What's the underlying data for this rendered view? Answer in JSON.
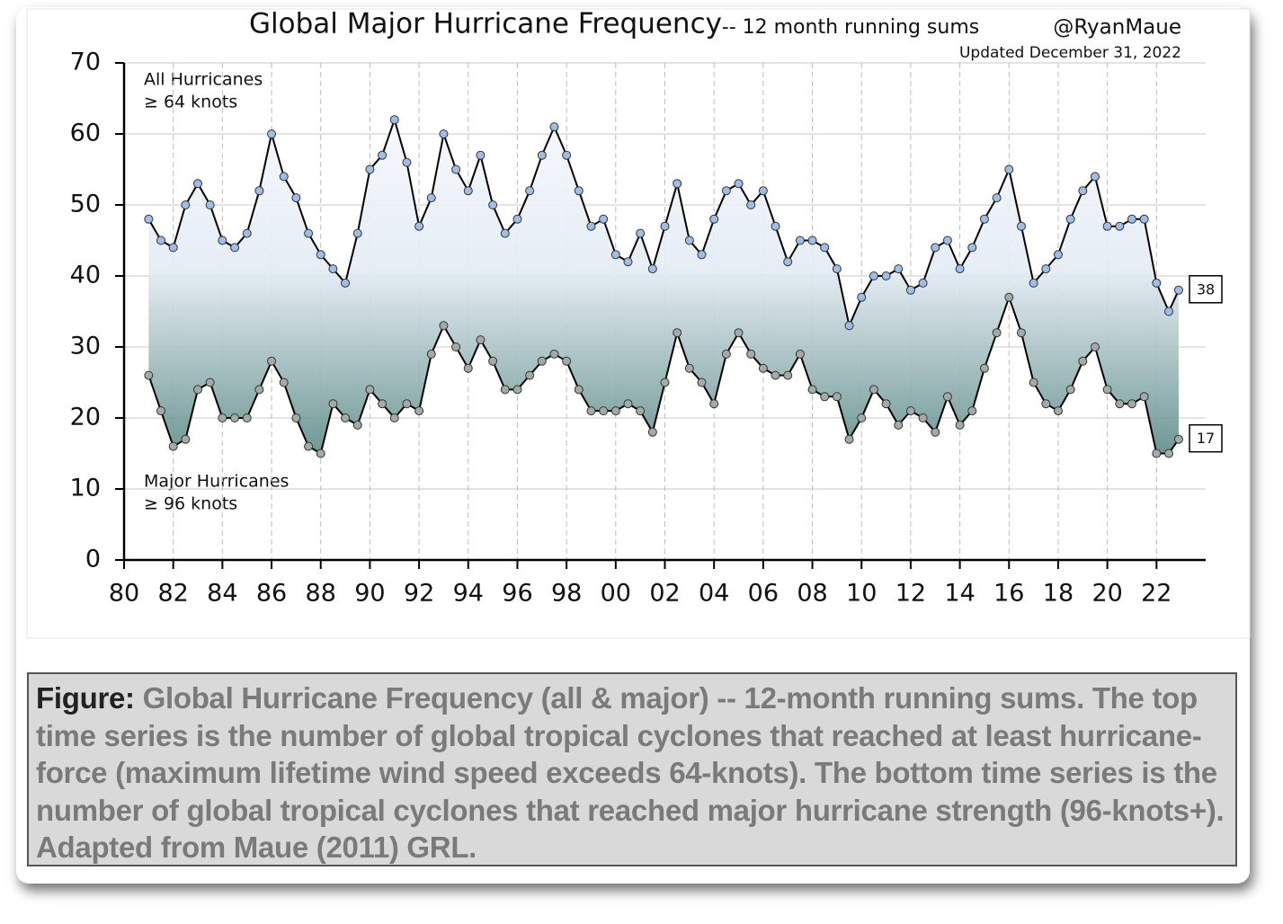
{
  "chart_data": {
    "type": "line",
    "title": "Global Major Hurricane Frequency",
    "subtitle": "-- 12 month running sums",
    "author": "@RyanMaue",
    "updated": "Updated December 31, 2022",
    "annotations": [
      {
        "lines": [
          "All Hurricanes",
          "≥ 64 knots"
        ]
      },
      {
        "lines": [
          "Major Hurricanes",
          "≥ 96 knots"
        ]
      }
    ],
    "x": [
      1981,
      1981.5,
      1982,
      1982.5,
      1983,
      1983.5,
      1984,
      1984.5,
      1985,
      1985.5,
      1986,
      1986.5,
      1987,
      1987.5,
      1988,
      1988.5,
      1989,
      1989.5,
      1990,
      1990.5,
      1991,
      1991.5,
      1992,
      1992.5,
      1993,
      1993.5,
      1994,
      1994.5,
      1995,
      1995.5,
      1996,
      1996.5,
      1997,
      1997.5,
      1998,
      1998.5,
      1999,
      1999.5,
      2000,
      2000.5,
      2001,
      2001.5,
      2002,
      2002.5,
      2003,
      2003.5,
      2004,
      2004.5,
      2005,
      2005.5,
      2006,
      2006.5,
      2007,
      2007.5,
      2008,
      2008.5,
      2009,
      2009.5,
      2010,
      2010.5,
      2011,
      2011.5,
      2012,
      2012.5,
      2013,
      2013.5,
      2014,
      2014.5,
      2015,
      2015.5,
      2016,
      2016.5,
      2017,
      2017.5,
      2018,
      2018.5,
      2019,
      2019.5,
      2020,
      2020.5,
      2021,
      2021.5,
      2022,
      2022.5,
      2022.9
    ],
    "series": [
      {
        "name": "All Hurricanes",
        "color": "#9dbdea",
        "end_label": "38",
        "values": [
          48,
          45,
          44,
          50,
          53,
          50,
          45,
          44,
          46,
          52,
          60,
          54,
          51,
          46,
          43,
          41,
          39,
          46,
          55,
          57,
          62,
          56,
          47,
          51,
          60,
          55,
          52,
          57,
          50,
          46,
          48,
          52,
          57,
          61,
          57,
          52,
          47,
          48,
          43,
          42,
          46,
          41,
          47,
          53,
          45,
          43,
          48,
          52,
          53,
          50,
          52,
          47,
          42,
          45,
          45,
          44,
          41,
          33,
          37,
          40,
          40,
          41,
          38,
          39,
          44,
          45,
          41,
          44,
          48,
          51,
          55,
          47,
          39,
          41,
          43,
          48,
          52,
          54,
          47,
          47,
          48,
          48,
          39,
          35,
          38
        ]
      },
      {
        "name": "Major Hurricanes",
        "color": "#a3aba9",
        "end_label": "17",
        "values": [
          26,
          21,
          16,
          17,
          24,
          25,
          20,
          20,
          20,
          24,
          28,
          25,
          20,
          16,
          15,
          22,
          20,
          19,
          24,
          22,
          20,
          22,
          21,
          29,
          33,
          30,
          27,
          31,
          28,
          24,
          24,
          26,
          28,
          29,
          28,
          24,
          21,
          21,
          21,
          22,
          21,
          18,
          25,
          32,
          27,
          25,
          22,
          29,
          32,
          29,
          27,
          26,
          26,
          29,
          24,
          23,
          23,
          17,
          20,
          24,
          22,
          19,
          21,
          20,
          18,
          23,
          19,
          21,
          27,
          32,
          37,
          32,
          25,
          22,
          21,
          24,
          28,
          30,
          24,
          22,
          22,
          23,
          15,
          15,
          17
        ]
      }
    ],
    "xlim": [
      1980,
      2024
    ],
    "xticks": [
      {
        "value": 1980,
        "label": "80"
      },
      {
        "value": 1982,
        "label": "82"
      },
      {
        "value": 1984,
        "label": "84"
      },
      {
        "value": 1986,
        "label": "86"
      },
      {
        "value": 1988,
        "label": "88"
      },
      {
        "value": 1990,
        "label": "90"
      },
      {
        "value": 1992,
        "label": "92"
      },
      {
        "value": 1994,
        "label": "94"
      },
      {
        "value": 1996,
        "label": "96"
      },
      {
        "value": 1998,
        "label": "98"
      },
      {
        "value": 2000,
        "label": "00"
      },
      {
        "value": 2002,
        "label": "02"
      },
      {
        "value": 2004,
        "label": "04"
      },
      {
        "value": 2006,
        "label": "06"
      },
      {
        "value": 2008,
        "label": "08"
      },
      {
        "value": 2010,
        "label": "10"
      },
      {
        "value": 2012,
        "label": "12"
      },
      {
        "value": 2014,
        "label": "14"
      },
      {
        "value": 2016,
        "label": "16"
      },
      {
        "value": 2018,
        "label": "18"
      },
      {
        "value": 2020,
        "label": "20"
      },
      {
        "value": 2022,
        "label": "22"
      }
    ],
    "ylim": [
      0,
      70
    ],
    "yticks": [
      0,
      10,
      20,
      30,
      40,
      50,
      60,
      70
    ],
    "grid": true
  },
  "caption": {
    "label": "Figure:",
    "text": "Global Hurricane Frequency (all & major) -- 12-month running sums. The top time series is the number of global tropical cyclones that reached at least hurricane-force (maximum lifetime wind speed exceeds 64-knots). The bottom time series is the number of global tropical cyclones that reached major hurricane strength (96-knots+). Adapted from Maue (2011) GRL."
  }
}
